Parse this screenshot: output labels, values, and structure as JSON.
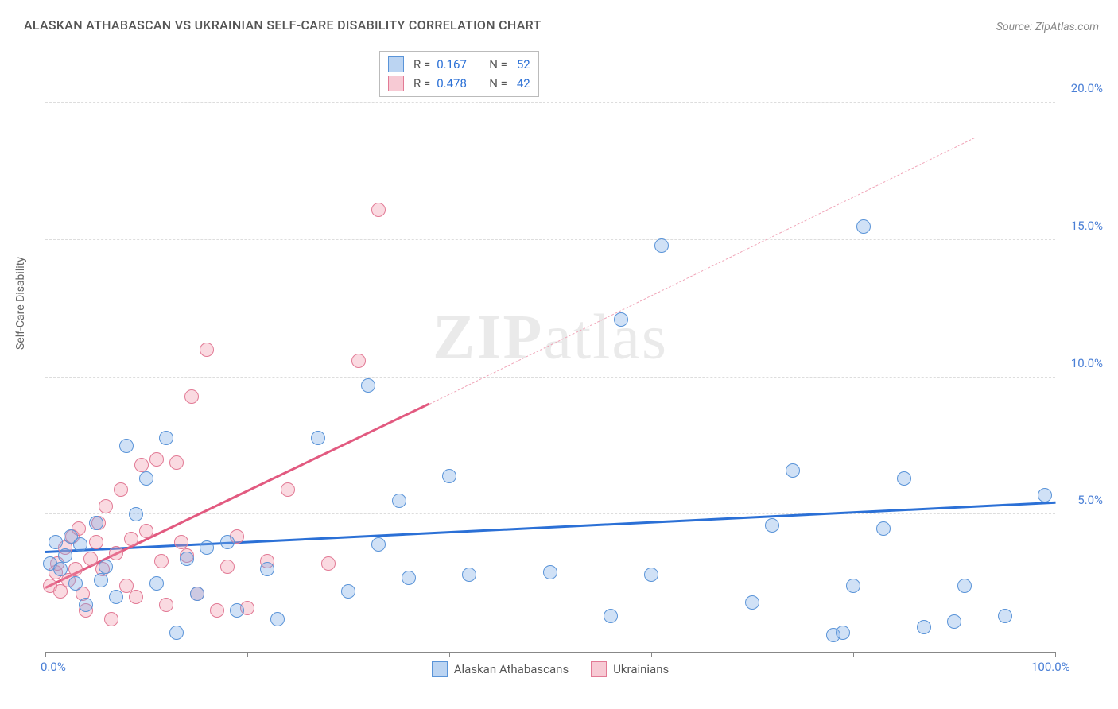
{
  "title": "ALASKAN ATHABASCAN VS UKRAINIAN SELF-CARE DISABILITY CORRELATION CHART",
  "source": "Source: ZipAtlas.com",
  "ylabel": "Self-Care Disability",
  "watermark_a": "ZIP",
  "watermark_b": "atlas",
  "chart": {
    "type": "scatter",
    "xlim": [
      0,
      100
    ],
    "ylim": [
      0,
      22
    ],
    "x_ticks": [
      0,
      20,
      40,
      60,
      80,
      100
    ],
    "x_tick_labels": {
      "0": "0.0%",
      "100": "100.0%"
    },
    "y_gridlines": [
      5,
      10,
      15,
      20
    ],
    "y_tick_labels": {
      "5": "5.0%",
      "10": "10.0%",
      "15": "15.0%",
      "20": "20.0%"
    },
    "background_color": "#ffffff",
    "grid_color": "#dddddd",
    "axis_color": "#888888",
    "label_color": "#4a7fd6"
  },
  "series": {
    "blue": {
      "label": "Alaskan Athabascans",
      "color_fill": "rgba(120,170,230,0.35)",
      "color_stroke": "#5a94d8",
      "trend_color": "#2b70d6",
      "R": "0.167",
      "N": "52",
      "trend": {
        "x1": 0,
        "y1": 3.6,
        "x2": 100,
        "y2": 5.4
      },
      "points": [
        [
          0.5,
          3.2
        ],
        [
          1,
          4.0
        ],
        [
          1.5,
          3.0
        ],
        [
          2,
          3.5
        ],
        [
          2.5,
          4.2
        ],
        [
          3,
          2.5
        ],
        [
          3.5,
          3.9
        ],
        [
          4,
          1.7
        ],
        [
          5,
          4.7
        ],
        [
          5.5,
          2.6
        ],
        [
          6,
          3.1
        ],
        [
          7,
          2.0
        ],
        [
          8,
          7.5
        ],
        [
          9,
          5.0
        ],
        [
          10,
          6.3
        ],
        [
          11,
          2.5
        ],
        [
          12,
          7.8
        ],
        [
          13,
          0.7
        ],
        [
          14,
          3.4
        ],
        [
          15,
          2.1
        ],
        [
          16,
          3.8
        ],
        [
          18,
          4.0
        ],
        [
          19,
          1.5
        ],
        [
          22,
          3.0
        ],
        [
          23,
          1.2
        ],
        [
          27,
          7.8
        ],
        [
          30,
          2.2
        ],
        [
          32,
          9.7
        ],
        [
          33,
          3.9
        ],
        [
          35,
          5.5
        ],
        [
          36,
          2.7
        ],
        [
          40,
          6.4
        ],
        [
          42,
          2.8
        ],
        [
          50,
          2.9
        ],
        [
          56,
          1.3
        ],
        [
          57,
          12.1
        ],
        [
          60,
          2.8
        ],
        [
          61,
          14.8
        ],
        [
          70,
          1.8
        ],
        [
          72,
          4.6
        ],
        [
          74,
          6.6
        ],
        [
          78,
          0.6
        ],
        [
          79,
          0.7
        ],
        [
          80,
          2.4
        ],
        [
          81,
          15.5
        ],
        [
          83,
          4.5
        ],
        [
          85,
          6.3
        ],
        [
          87,
          0.9
        ],
        [
          90,
          1.1
        ],
        [
          91,
          2.4
        ],
        [
          95,
          1.3
        ],
        [
          99,
          5.7
        ]
      ]
    },
    "pink": {
      "label": "Ukrainians",
      "color_fill": "rgba(240,150,170,0.35)",
      "color_stroke": "#e27a95",
      "trend_color": "#e25a80",
      "R": "0.478",
      "N": "42",
      "trend_solid": {
        "x1": 0,
        "y1": 2.3,
        "x2": 38,
        "y2": 9.0
      },
      "trend_dash": {
        "x1": 38,
        "y1": 9.0,
        "x2": 92,
        "y2": 18.7
      },
      "points": [
        [
          0.5,
          2.4
        ],
        [
          1,
          2.9
        ],
        [
          1.2,
          3.2
        ],
        [
          1.5,
          2.2
        ],
        [
          2,
          3.8
        ],
        [
          2.3,
          2.6
        ],
        [
          2.7,
          4.2
        ],
        [
          3,
          3.0
        ],
        [
          3.3,
          4.5
        ],
        [
          3.7,
          2.1
        ],
        [
          4,
          1.5
        ],
        [
          4.5,
          3.4
        ],
        [
          5,
          4.0
        ],
        [
          5.3,
          4.7
        ],
        [
          5.7,
          3.0
        ],
        [
          6,
          5.3
        ],
        [
          6.5,
          1.2
        ],
        [
          7,
          3.6
        ],
        [
          7.5,
          5.9
        ],
        [
          8,
          2.4
        ],
        [
          8.5,
          4.1
        ],
        [
          9,
          2.0
        ],
        [
          9.5,
          6.8
        ],
        [
          10,
          4.4
        ],
        [
          11,
          7.0
        ],
        [
          11.5,
          3.3
        ],
        [
          12,
          1.7
        ],
        [
          13,
          6.9
        ],
        [
          13.5,
          4.0
        ],
        [
          14,
          3.5
        ],
        [
          14.5,
          9.3
        ],
        [
          15,
          2.1
        ],
        [
          16,
          11.0
        ],
        [
          17,
          1.5
        ],
        [
          18,
          3.1
        ],
        [
          19,
          4.2
        ],
        [
          20,
          1.6
        ],
        [
          22,
          3.3
        ],
        [
          24,
          5.9
        ],
        [
          28,
          3.2
        ],
        [
          31,
          10.6
        ],
        [
          33,
          16.1
        ]
      ]
    }
  }
}
